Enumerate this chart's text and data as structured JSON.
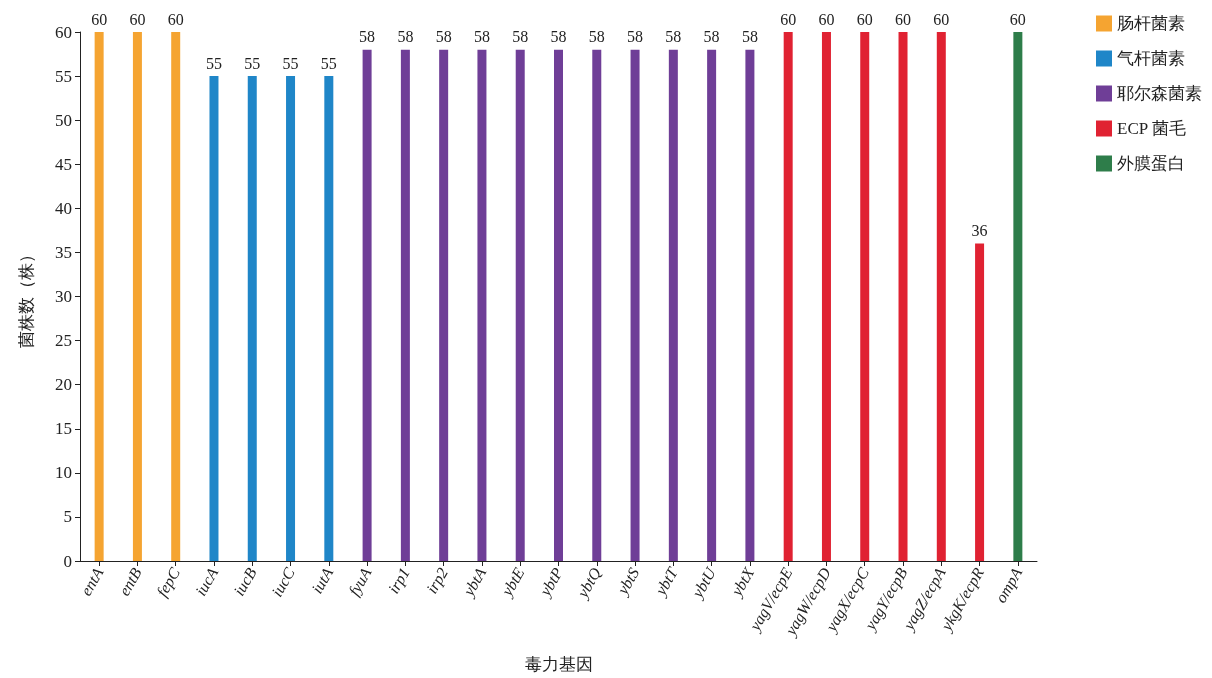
{
  "chart_data": {
    "type": "bar",
    "xlabel": "毒力基因",
    "ylabel": "菌株数（株）",
    "categories": [
      "entA",
      "entB",
      "fepC",
      "iucA",
      "iucB",
      "iucC",
      "iutA",
      "fyuA",
      "irp1",
      "irp2",
      "ybtA",
      "ybtE",
      "ybtP",
      "ybtQ",
      "ybtS",
      "ybtT",
      "ybtU",
      "ybtX",
      "yagV/ecpE",
      "yagW/ecpD",
      "yagX/ecpC",
      "yagY/ecpB",
      "yagZ/ecpA",
      "ykgK/ecpR",
      "ompA"
    ],
    "series": [
      {
        "name": "肠杆菌素",
        "color": "#f5a431",
        "values": [
          60,
          60,
          60,
          null,
          null,
          null,
          null,
          null,
          null,
          null,
          null,
          null,
          null,
          null,
          null,
          null,
          null,
          null,
          null,
          null,
          null,
          null,
          null,
          null,
          null
        ]
      },
      {
        "name": "气杆菌素",
        "color": "#1f86c8",
        "values": [
          null,
          null,
          null,
          55,
          55,
          55,
          55,
          null,
          null,
          null,
          null,
          null,
          null,
          null,
          null,
          null,
          null,
          null,
          null,
          null,
          null,
          null,
          null,
          null,
          null
        ]
      },
      {
        "name": "耶尔森菌素",
        "color": "#6f3e97",
        "values": [
          null,
          null,
          null,
          null,
          null,
          null,
          null,
          58,
          58,
          58,
          58,
          58,
          58,
          58,
          58,
          58,
          58,
          58,
          null,
          null,
          null,
          null,
          null,
          null,
          null
        ]
      },
      {
        "name": "ECP 菌毛",
        "color": "#e02232",
        "values": [
          null,
          null,
          null,
          null,
          null,
          null,
          null,
          null,
          null,
          null,
          null,
          null,
          null,
          null,
          null,
          null,
          null,
          null,
          60,
          60,
          60,
          60,
          60,
          36,
          null
        ]
      },
      {
        "name": "外膜蛋白",
        "color": "#2e7d4a",
        "values": [
          null,
          null,
          null,
          null,
          null,
          null,
          null,
          null,
          null,
          null,
          null,
          null,
          null,
          null,
          null,
          null,
          null,
          null,
          null,
          null,
          null,
          null,
          null,
          null,
          60
        ]
      }
    ],
    "ylim": [
      0,
      60
    ],
    "yticks": [
      0,
      5,
      10,
      15,
      20,
      25,
      30,
      35,
      40,
      45,
      50,
      55,
      60
    ],
    "grid": false,
    "legend": "top right",
    "data_labels": true
  }
}
